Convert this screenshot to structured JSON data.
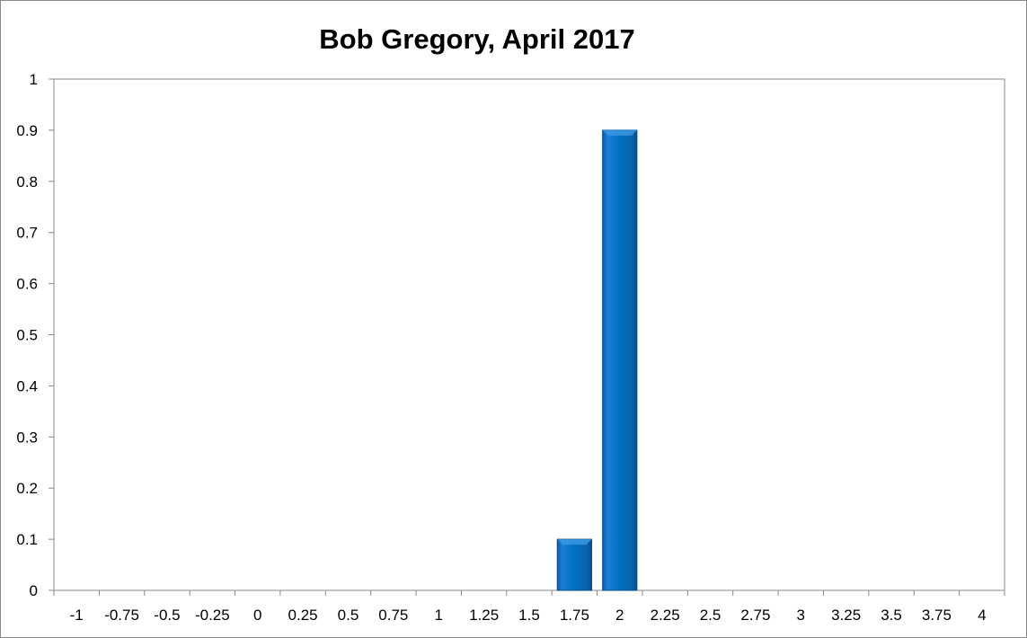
{
  "chart_data": {
    "type": "bar",
    "title": "Bob Gregory, April 2017",
    "xlabel": "",
    "ylabel": "",
    "categories": [
      "-1",
      "-0.75",
      "-0.5",
      "-0.25",
      "0",
      "0.25",
      "0.5",
      "0.75",
      "1",
      "1.25",
      "1.5",
      "1.75",
      "2",
      "2.25",
      "2.5",
      "2.75",
      "3",
      "3.25",
      "3.5",
      "3.75",
      "4"
    ],
    "values": [
      0,
      0,
      0,
      0,
      0,
      0,
      0,
      0,
      0,
      0,
      0,
      0.1,
      0.9,
      0,
      0,
      0,
      0,
      0,
      0,
      0,
      0
    ],
    "ylim": [
      0,
      1
    ],
    "yticks": [
      "0",
      "0.1",
      "0.2",
      "0.3",
      "0.4",
      "0.5",
      "0.6",
      "0.7",
      "0.8",
      "0.9",
      "1"
    ],
    "grid": false,
    "legend": "none",
    "bar_color": "#0070C0"
  }
}
